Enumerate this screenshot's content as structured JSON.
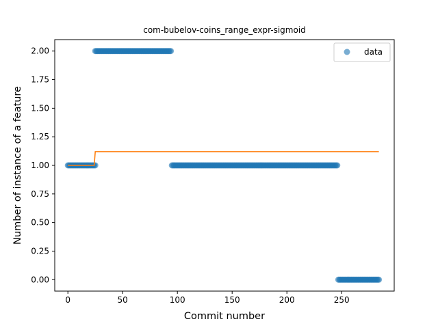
{
  "chart_data": {
    "type": "scatter",
    "title": "com-bubelov-coins_range_expr-sigmoid",
    "xlabel": "Commit number",
    "ylabel": "Number of instance of a feature",
    "xlim": [
      -12,
      298
    ],
    "ylim": [
      -0.1,
      2.1
    ],
    "xticks": [
      0,
      50,
      100,
      150,
      200,
      250
    ],
    "yticks": [
      0.0,
      0.25,
      0.5,
      0.75,
      1.0,
      1.25,
      1.5,
      1.75,
      2.0
    ],
    "ytick_labels": [
      "0.00",
      "0.25",
      "0.50",
      "0.75",
      "1.00",
      "1.25",
      "1.50",
      "1.75",
      "2.00"
    ],
    "grid": false,
    "legend": {
      "position": "top-right",
      "entries": [
        "data"
      ]
    },
    "series": [
      {
        "name": "data",
        "kind": "scatter",
        "color": "#1f77b4",
        "segments": [
          {
            "x_from": 0,
            "x_to": 25,
            "y": 1
          },
          {
            "x_from": 25,
            "x_to": 94,
            "y": 2
          },
          {
            "x_from": 95,
            "x_to": 246,
            "y": 1
          },
          {
            "x_from": 247,
            "x_to": 284,
            "y": 0
          }
        ]
      },
      {
        "kind": "line",
        "color": "#ff7f0e",
        "points": [
          [
            0,
            1.0
          ],
          [
            24,
            1.0
          ],
          [
            25,
            1.12
          ],
          [
            284,
            1.12
          ]
        ]
      }
    ]
  }
}
